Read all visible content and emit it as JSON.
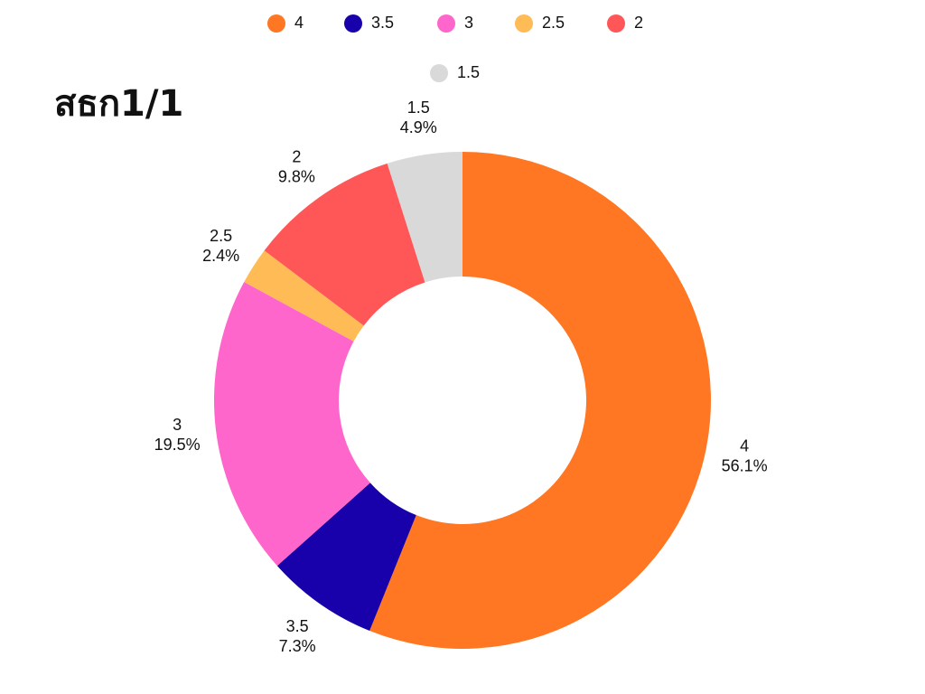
{
  "chart_data": {
    "type": "pie",
    "variant": "donut",
    "title": "สธก1/1",
    "categories": [
      "4",
      "3.5",
      "3",
      "2.5",
      "2",
      "1.5"
    ],
    "values": [
      56.1,
      7.3,
      19.5,
      2.4,
      9.8,
      4.9
    ],
    "value_labels": [
      "56.1%",
      "7.3%",
      "19.5%",
      "2.4%",
      "9.8%",
      "4.9%"
    ],
    "colors": [
      "#FF7722",
      "#1800AA",
      "#FF66CC",
      "#FFBB55",
      "#FF5757",
      "#D9D9D9"
    ],
    "legend_placement": "top"
  }
}
